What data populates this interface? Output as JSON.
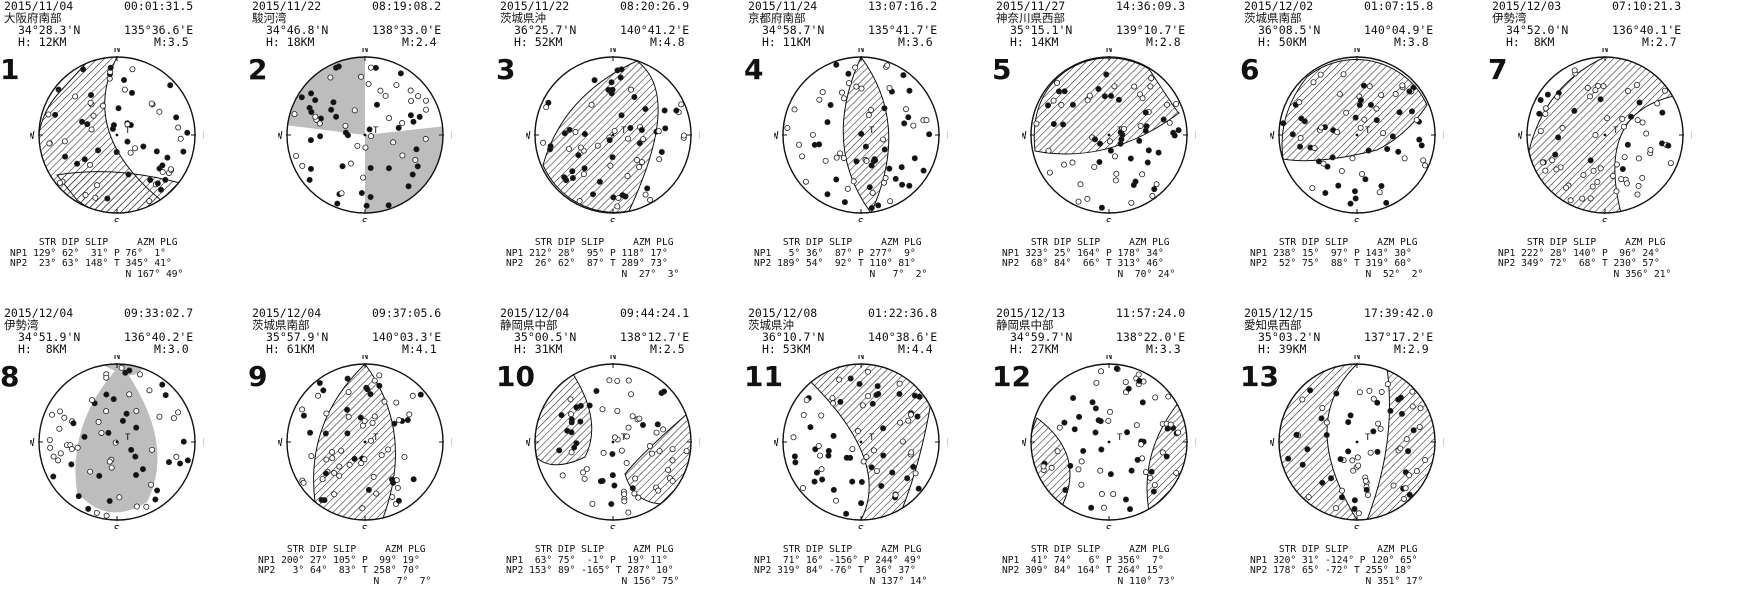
{
  "table_headers": {
    "str": "STR",
    "dip": "DIP",
    "slip": "SLIP",
    "azm": "AZM",
    "plg": "PLG"
  },
  "labels": {
    "np1": "NP1",
    "np2": "NP2",
    "p": "P",
    "t": "T",
    "n": "N"
  },
  "directions": {
    "n": "N",
    "s": "S",
    "e": "E",
    "w": "W"
  },
  "mechanisms": [
    {
      "num": "1",
      "date": "2015/11/04",
      "time": "00:01:31.5",
      "region": "大阪府南部",
      "lat": "34°28.3'N",
      "lon": "135°36.6'E",
      "depth": "H: 12KM",
      "mag": "M:3.5",
      "fill": "hatch",
      "np1": "129° 62°  31°",
      "np2": " 23° 63° 148°",
      "p": "76°  1°",
      "t": "345° 41°",
      "n": "167° 49°"
    },
    {
      "num": "2",
      "date": "2015/11/22",
      "time": "08:19:08.2",
      "region": "駿河湾",
      "lat": "34°46.8'N",
      "lon": "138°33.0'E",
      "depth": "H: 18KM",
      "mag": "M:2.4",
      "fill": "gray",
      "np1": "",
      "np2": "",
      "p": "",
      "t": "",
      "n": ""
    },
    {
      "num": "3",
      "date": "2015/11/22",
      "time": "08:20:26.9",
      "region": "茨城県沖",
      "lat": "36°25.7'N",
      "lon": "140°41.2'E",
      "depth": "H: 52KM",
      "mag": "M:4.8",
      "fill": "hatch",
      "np1": "212° 28°  95°",
      "np2": " 26° 62°  87°",
      "p": "118° 17°",
      "t": "289° 73°",
      "n": " 27°  3°"
    },
    {
      "num": "4",
      "date": "2015/11/24",
      "time": "13:07:16.2",
      "region": "京都府南部",
      "lat": "34°58.7'N",
      "lon": "135°41.7'E",
      "depth": "H: 11KM",
      "mag": "M:3.6",
      "fill": "hatch",
      "np1": "  5° 36°  87°",
      "np2": "189° 54°  92°",
      "p": "277°  9°",
      "t": "110° 81°",
      "n": "  7°  2°"
    },
    {
      "num": "5",
      "date": "2015/11/27",
      "time": "14:36:09.3",
      "region": "神奈川県西部",
      "lat": "35°15.1'N",
      "lon": "139°10.7'E",
      "depth": "H: 14KM",
      "mag": "M:2.8",
      "fill": "hatch",
      "np1": "323° 25° 164°",
      "np2": " 68° 84°  66°",
      "p": "178° 34°",
      "t": "313° 46°",
      "n": " 70° 24°"
    },
    {
      "num": "6",
      "date": "2015/12/02",
      "time": "01:07:15.8",
      "region": "茨城県南部",
      "lat": "36°08.5'N",
      "lon": "140°04.9'E",
      "depth": "H: 50KM",
      "mag": "M:3.8",
      "fill": "hatch",
      "np1": "238° 15°  97°",
      "np2": " 52° 75°  88°",
      "p": "143° 30°",
      "t": "319° 60°",
      "n": " 52°  2°"
    },
    {
      "num": "7",
      "date": "2015/12/03",
      "time": "07:10:21.3",
      "region": "伊勢湾",
      "lat": "34°52.0'N",
      "lon": "136°40.1'E",
      "depth": "H:  8KM",
      "mag": "M:2.7",
      "fill": "hatch",
      "np1": "222° 28° 140°",
      "np2": "349° 72°  68°",
      "p": " 96° 24°",
      "t": "230° 57°",
      "n": "356° 21°"
    },
    {
      "num": "8",
      "date": "2015/12/04",
      "time": "09:33:02.7",
      "region": "伊勢湾",
      "lat": "34°51.9'N",
      "lon": "136°40.2'E",
      "depth": "H:  8KM",
      "mag": "M:3.0",
      "fill": "gray",
      "np1": "",
      "np2": "",
      "p": "",
      "t": "",
      "n": ""
    },
    {
      "num": "9",
      "date": "2015/12/04",
      "time": "09:37:05.6",
      "region": "茨城県南部",
      "lat": "35°57.9'N",
      "lon": "140°03.3'E",
      "depth": "H: 61KM",
      "mag": "M:4.1",
      "fill": "hatch",
      "np1": "200° 27° 105°",
      "np2": "  3° 64°  83°",
      "p": " 99° 19°",
      "t": "258° 70°",
      "n": "  7°  7°"
    },
    {
      "num": "10",
      "date": "2015/12/04",
      "time": "09:44:24.1",
      "region": "静岡県中部",
      "lat": "35°00.5'N",
      "lon": "138°12.7'E",
      "depth": "H: 31KM",
      "mag": "M:2.5",
      "fill": "hatch",
      "np1": " 63° 75°  -1°",
      "np2": "153° 89° -165°",
      "p": " 19° 11°",
      "t": "287° 10°",
      "n": "156° 75°"
    },
    {
      "num": "11",
      "date": "2015/12/08",
      "time": "01:22:36.8",
      "region": "茨城県沖",
      "lat": "36°10.7'N",
      "lon": "140°38.6'E",
      "depth": "H: 53KM",
      "mag": "M:4.4",
      "fill": "hatch",
      "np1": " 71° 16° -156°",
      "np2": "319° 84° -76°",
      "p": "244° 49°",
      "t": " 36° 37°",
      "n": "137° 14°"
    },
    {
      "num": "12",
      "date": "2015/12/13",
      "time": "11:57:24.0",
      "region": "静岡県中部",
      "lat": "34°59.7'N",
      "lon": "138°22.0'E",
      "depth": "H: 27KM",
      "mag": "M:3.3",
      "fill": "hatch",
      "np1": " 41° 74°   6°",
      "np2": "309° 84° 164°",
      "p": "356°  7°",
      "t": "264° 15°",
      "n": "110° 73°"
    },
    {
      "num": "13",
      "date": "2015/12/15",
      "time": "17:39:42.0",
      "region": "愛知県西部",
      "lat": "35°03.2'N",
      "lon": "137°17.2'E",
      "depth": "H: 39KM",
      "mag": "M:2.9",
      "fill": "hatch",
      "np1": "320° 31° -124°",
      "np2": "178° 65° -72°",
      "p": "120° 65°",
      "t": "255° 18°",
      "n": "351° 17°"
    }
  ]
}
